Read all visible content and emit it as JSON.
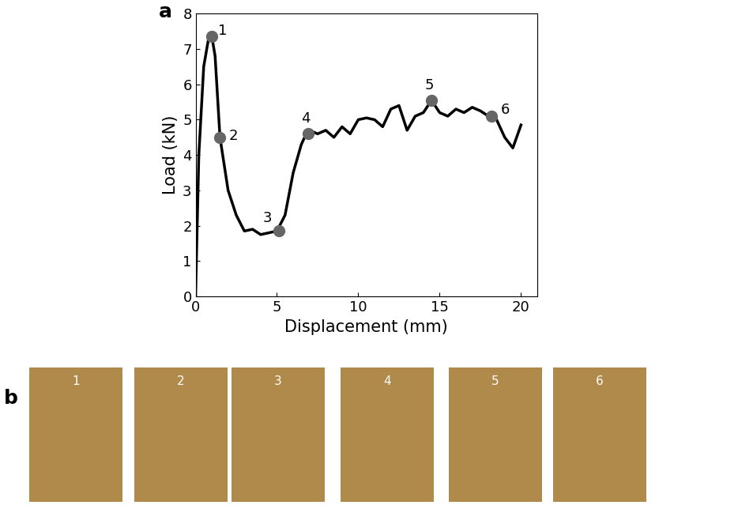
{
  "chart_data": {
    "type": "line",
    "panel_label": "a",
    "x_label": "Displacement (mm)",
    "y_label": "Load (kN)",
    "x": [
      0,
      0.2,
      0.5,
      0.8,
      1.0,
      1.2,
      1.5,
      2.0,
      2.5,
      3.0,
      3.5,
      4.0,
      4.5,
      5.0,
      5.5,
      6.0,
      6.5,
      6.8,
      7.0,
      7.5,
      8,
      8.5,
      9,
      9.5,
      10,
      10.5,
      11,
      11.5,
      12,
      12.5,
      13,
      13.5,
      14,
      14.5,
      15,
      15.5,
      16,
      16.5,
      17,
      17.5,
      18,
      18.5,
      19,
      19.5,
      20
    ],
    "series": [
      {
        "name": "Load",
        "color": "#000000",
        "values": [
          0,
          4.0,
          6.5,
          7.3,
          7.35,
          6.8,
          4.5,
          3.0,
          2.3,
          1.85,
          1.9,
          1.75,
          1.8,
          1.85,
          2.3,
          3.5,
          4.3,
          4.6,
          4.7,
          4.6,
          4.7,
          4.5,
          4.8,
          4.6,
          5.0,
          5.05,
          5.0,
          4.8,
          5.3,
          5.4,
          4.7,
          5.1,
          5.2,
          5.55,
          5.2,
          5.1,
          5.3,
          5.2,
          5.35,
          5.25,
          5.1,
          5.0,
          4.5,
          4.2,
          4.85
        ]
      }
    ],
    "points": {
      "color": "#666666",
      "marker": "o",
      "labels": [
        "1",
        "2",
        "3",
        "4",
        "5",
        "6"
      ],
      "x": [
        1.0,
        1.5,
        5.1,
        6.9,
        14.5,
        18.2
      ],
      "y": [
        7.35,
        4.5,
        1.85,
        4.6,
        5.55,
        5.1
      ]
    },
    "xlim": [
      0,
      21
    ],
    "xticks": [
      0,
      5,
      10,
      15,
      20
    ],
    "ylim": [
      0,
      8
    ],
    "yticks": [
      0,
      1,
      2,
      3,
      4,
      5,
      6,
      7,
      8
    ],
    "grid": false
  },
  "photos": {
    "panel_label": "b",
    "frames": [
      "1",
      "2",
      "3",
      "4",
      "5",
      "6"
    ],
    "color": "#b08a4a"
  }
}
